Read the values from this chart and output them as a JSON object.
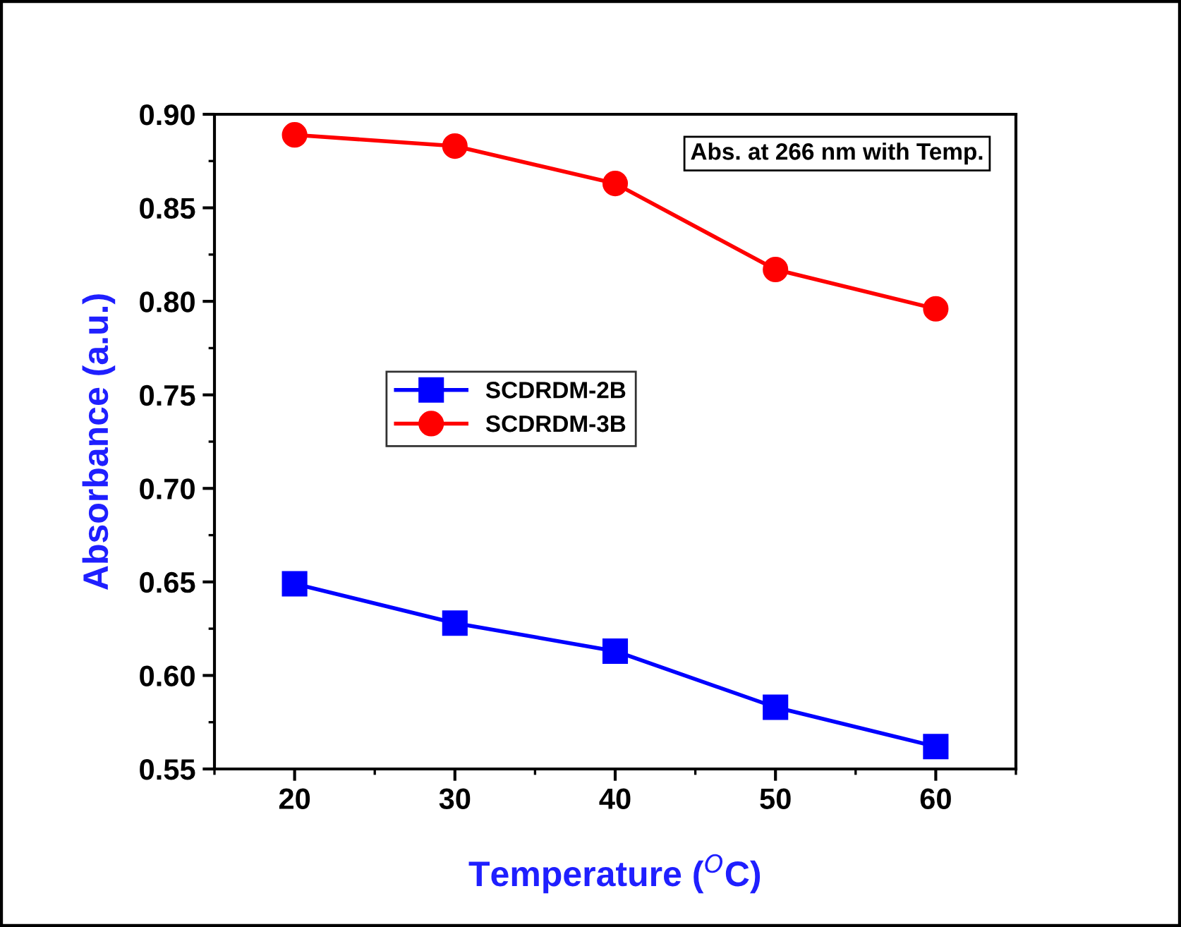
{
  "chart_data": {
    "type": "line",
    "xlabel": "Temperature ($^{O}$C)",
    "ylabel": "Absorbance (a.u.)",
    "x": [
      20,
      30,
      40,
      50,
      60
    ],
    "series": [
      {
        "name": "SCDRDM-2B",
        "color": "#0000ff",
        "marker": "square",
        "values": [
          0.649,
          0.628,
          0.613,
          0.583,
          0.562
        ]
      },
      {
        "name": "SCDRDM-3B",
        "color": "#ff0000",
        "marker": "circle",
        "values": [
          0.889,
          0.883,
          0.863,
          0.817,
          0.796
        ]
      }
    ],
    "xlim": [
      15,
      65
    ],
    "xticks": [
      20,
      30,
      40,
      50,
      60
    ],
    "ylim": [
      0.55,
      0.9
    ],
    "yticks": [
      {
        "value": 0.55,
        "label": "0.55"
      },
      {
        "value": 0.6,
        "label": "0.60"
      },
      {
        "value": 0.65,
        "label": "0.65"
      },
      {
        "value": 0.7,
        "label": "0.70"
      },
      {
        "value": 0.75,
        "label": "0.75"
      },
      {
        "value": 0.8,
        "label": "0.80"
      },
      {
        "value": 0.85,
        "label": "0.85"
      },
      {
        "value": 0.9,
        "label": "0.90"
      }
    ],
    "annotations": [
      "Abs. at 266 nm with Temp."
    ],
    "legend": "center left",
    "grid": false,
    "line_style": "solid"
  }
}
